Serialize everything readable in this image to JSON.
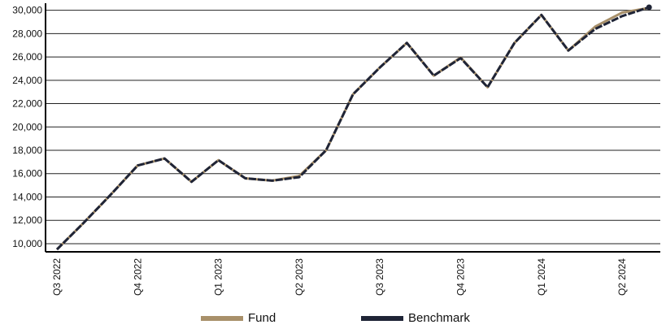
{
  "chart_data": {
    "type": "line",
    "title": "",
    "xlabel": "",
    "ylabel": "",
    "x_tick_labels": [
      "Q3 2022",
      "Q4 2022",
      "Q1 2023",
      "Q2 2023",
      "Q3 2023",
      "Q4 2023",
      "Q1 2024",
      "Q2 2024"
    ],
    "y_ticks": [
      10000,
      12000,
      14000,
      16000,
      18000,
      20000,
      22000,
      24000,
      26000,
      28000,
      30000
    ],
    "y_tick_labels": [
      "10,000",
      "12,000",
      "14,000",
      "16,000",
      "18,000",
      "20,000",
      "22,000",
      "24,000",
      "26,000",
      "28,000",
      "30,000"
    ],
    "ylim": [
      9300,
      30600
    ],
    "grid": "horizontal",
    "legend_position": "bottom-center",
    "series": [
      {
        "name": "Fund",
        "color": "#a8906a",
        "style": "solid",
        "values": [
          9500,
          11800,
          14200,
          16700,
          17300,
          15300,
          17150,
          15600,
          15400,
          15800,
          18000,
          22800,
          25100,
          27200,
          24400,
          25950,
          23400,
          27200,
          29600,
          26550,
          28600,
          29800,
          30200
        ]
      },
      {
        "name": "Benchmark",
        "color": "#1f2436",
        "style": "dashed",
        "values": [
          9500,
          11800,
          14200,
          16700,
          17300,
          15300,
          17150,
          15600,
          15400,
          15700,
          18000,
          22800,
          25100,
          27200,
          24400,
          25900,
          23400,
          27200,
          29600,
          26550,
          28400,
          29500,
          30250
        ]
      }
    ]
  }
}
